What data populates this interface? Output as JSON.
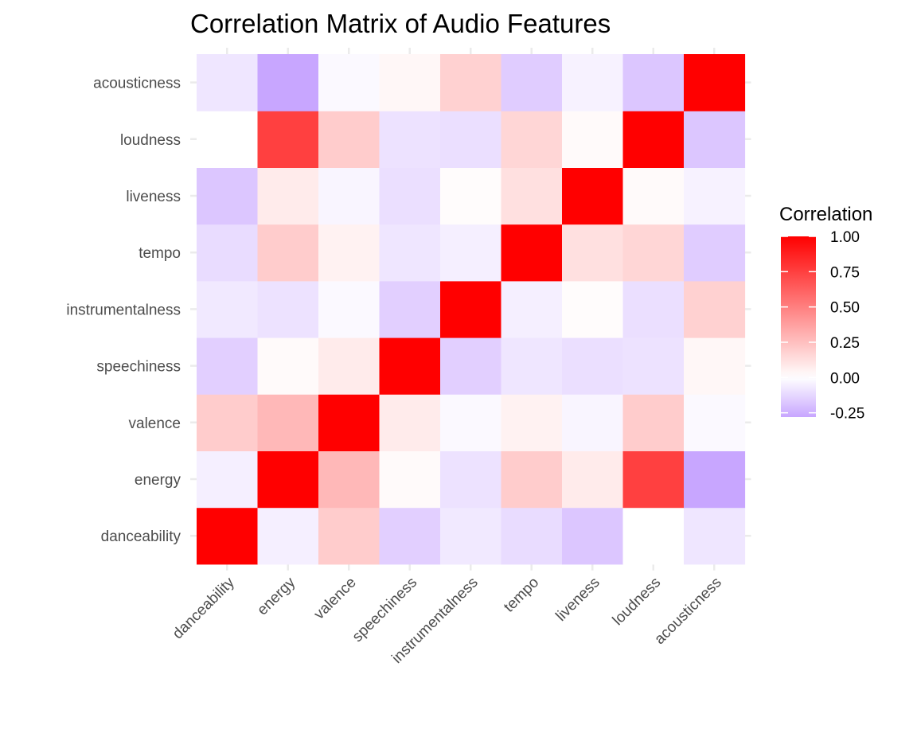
{
  "chart_data": {
    "type": "heatmap",
    "title": "Correlation Matrix of Audio Features",
    "xlabel": "",
    "ylabel": "",
    "x_categories": [
      "danceability",
      "energy",
      "valence",
      "speechiness",
      "instrumentalness",
      "tempo",
      "liveness",
      "loudness",
      "acousticness"
    ],
    "y_categories": [
      "danceability",
      "energy",
      "valence",
      "speechiness",
      "instrumentalness",
      "tempo",
      "liveness",
      "loudness",
      "acousticness"
    ],
    "values": [
      [
        1.0,
        -0.05,
        0.2,
        -0.15,
        -0.07,
        -0.11,
        -0.18,
        0.0,
        -0.08
      ],
      [
        -0.05,
        1.0,
        0.28,
        0.02,
        -0.09,
        0.2,
        0.08,
        0.75,
        -0.28
      ],
      [
        0.2,
        0.28,
        1.0,
        0.08,
        -0.02,
        0.05,
        -0.03,
        0.2,
        -0.02
      ],
      [
        -0.15,
        0.02,
        0.08,
        1.0,
        -0.15,
        -0.08,
        -0.1,
        -0.09,
        0.03
      ],
      [
        -0.07,
        -0.09,
        -0.02,
        -0.15,
        1.0,
        -0.05,
        0.01,
        -0.1,
        0.18
      ],
      [
        -0.11,
        0.2,
        0.05,
        -0.08,
        -0.05,
        1.0,
        0.12,
        0.16,
        -0.16
      ],
      [
        -0.18,
        0.08,
        -0.03,
        -0.1,
        0.01,
        0.12,
        1.0,
        0.02,
        -0.04
      ],
      [
        0.0,
        0.75,
        0.2,
        -0.09,
        -0.1,
        0.16,
        0.02,
        1.0,
        -0.18
      ],
      [
        -0.08,
        -0.28,
        -0.02,
        0.03,
        0.18,
        -0.16,
        -0.04,
        -0.18,
        1.0
      ]
    ],
    "legend": {
      "title": "Correlation",
      "ticks": [
        1.0,
        0.75,
        0.5,
        0.25,
        0.0,
        -0.25
      ],
      "tick_labels": [
        "1.00",
        "0.75",
        "0.50",
        "0.25",
        "0.00",
        "-0.25"
      ],
      "range": [
        -0.28,
        1.0
      ],
      "placement": "right"
    },
    "colors": {
      "low": "#c8a6ff",
      "mid": "#ffffff",
      "high": "#ff0000"
    },
    "grid": true
  }
}
